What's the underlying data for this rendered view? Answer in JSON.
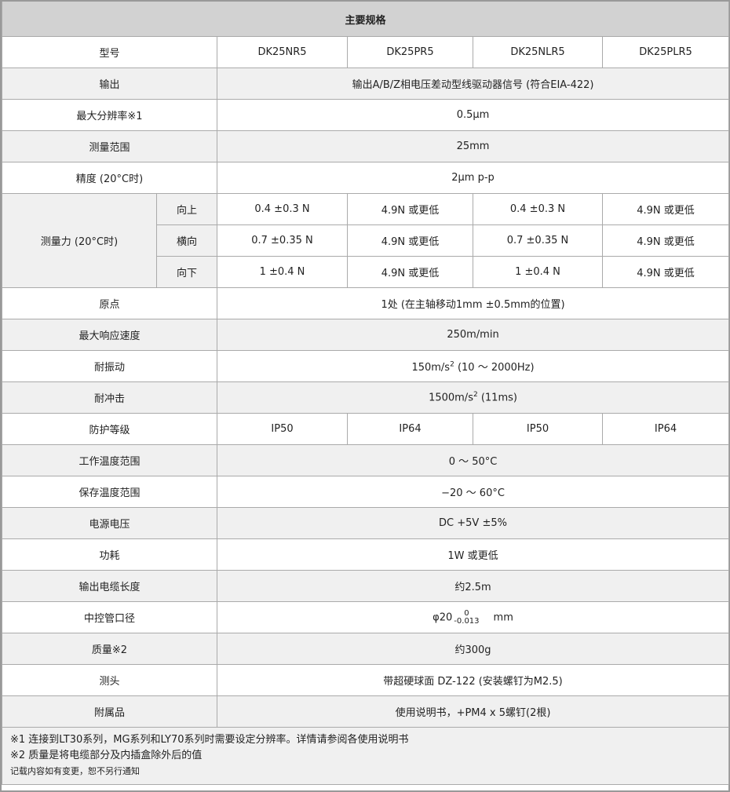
{
  "title": "主要规格",
  "models": {
    "label": "型号",
    "values": [
      "DK25NR5",
      "DK25PR5",
      "DK25NLR5",
      "DK25PLR5"
    ]
  },
  "output": {
    "label": "输出",
    "value": "输出A/B/Z相电压差动型线驱动器信号 (符合EIA-422)"
  },
  "resolution": {
    "label": "最大分辨率※1",
    "value": "0.5μm"
  },
  "range": {
    "label": "测量范围",
    "value": "25mm"
  },
  "accuracy": {
    "label": "精度 (20°C时)",
    "value": "2μm p-p"
  },
  "force": {
    "label": "测量力 (20°C时)",
    "rows": [
      {
        "dir": "向上",
        "values": [
          "0.4 ±0.3 N",
          "4.9N 或更低",
          "0.4 ±0.3 N",
          "4.9N 或更低"
        ]
      },
      {
        "dir": "横向",
        "values": [
          "0.7 ±0.35 N",
          "4.9N 或更低",
          "0.7 ±0.35 N",
          "4.9N 或更低"
        ]
      },
      {
        "dir": "向下",
        "values": [
          "1 ±0.4 N",
          "4.9N 或更低",
          "1 ±0.4 N",
          "4.9N 或更低"
        ]
      }
    ]
  },
  "origin": {
    "label": "原点",
    "value": "1处 (在主轴移动1mm ±0.5mm的位置)"
  },
  "speed": {
    "label": "最大响应速度",
    "value": "250m/min"
  },
  "vibration": {
    "label": "耐振动",
    "value": "150m/s",
    "sup": "2",
    "rest": " (10 ～ 2000Hz)"
  },
  "shock": {
    "label": "耐冲击",
    "value": "1500m/s",
    "sup": "2",
    "rest": " (11ms)"
  },
  "protection": {
    "label": "防护等级",
    "values": [
      "IP50",
      "IP64",
      "IP50",
      "IP64"
    ]
  },
  "op_temp": {
    "label": "工作温度范围",
    "value": "0 ～ 50°C"
  },
  "store_temp": {
    "label": "保存温度范围",
    "value": "−20 ～ 60°C"
  },
  "power": {
    "label": "电源电压",
    "value": "DC +5V ±5%"
  },
  "consumption": {
    "label": "功耗",
    "value": "1W 或更低"
  },
  "cable": {
    "label": "输出电缆长度",
    "value": "约2.5m"
  },
  "stem": {
    "label": "中控管口径",
    "value": "φ20",
    "tol_upper": "0",
    "tol_lower": "-0.013",
    "unit": "mm"
  },
  "mass": {
    "label": "质量※2",
    "value": "约300g"
  },
  "probe": {
    "label": "测头",
    "value": "带超硬球面 DZ-122 (安装螺钉为M2.5)"
  },
  "accessories": {
    "label": "附属品",
    "value": "使用说明书，+PM4 x 5螺钉(2根)"
  },
  "notes": [
    "※1 连接到LT30系列，MG系列和LY70系列时需要设定分辨率。详情请参阅各使用说明书",
    "※2 质量是将电缆部分及内插盒除外后的值",
    "记载内容如有变更，恕不另行通知"
  ]
}
